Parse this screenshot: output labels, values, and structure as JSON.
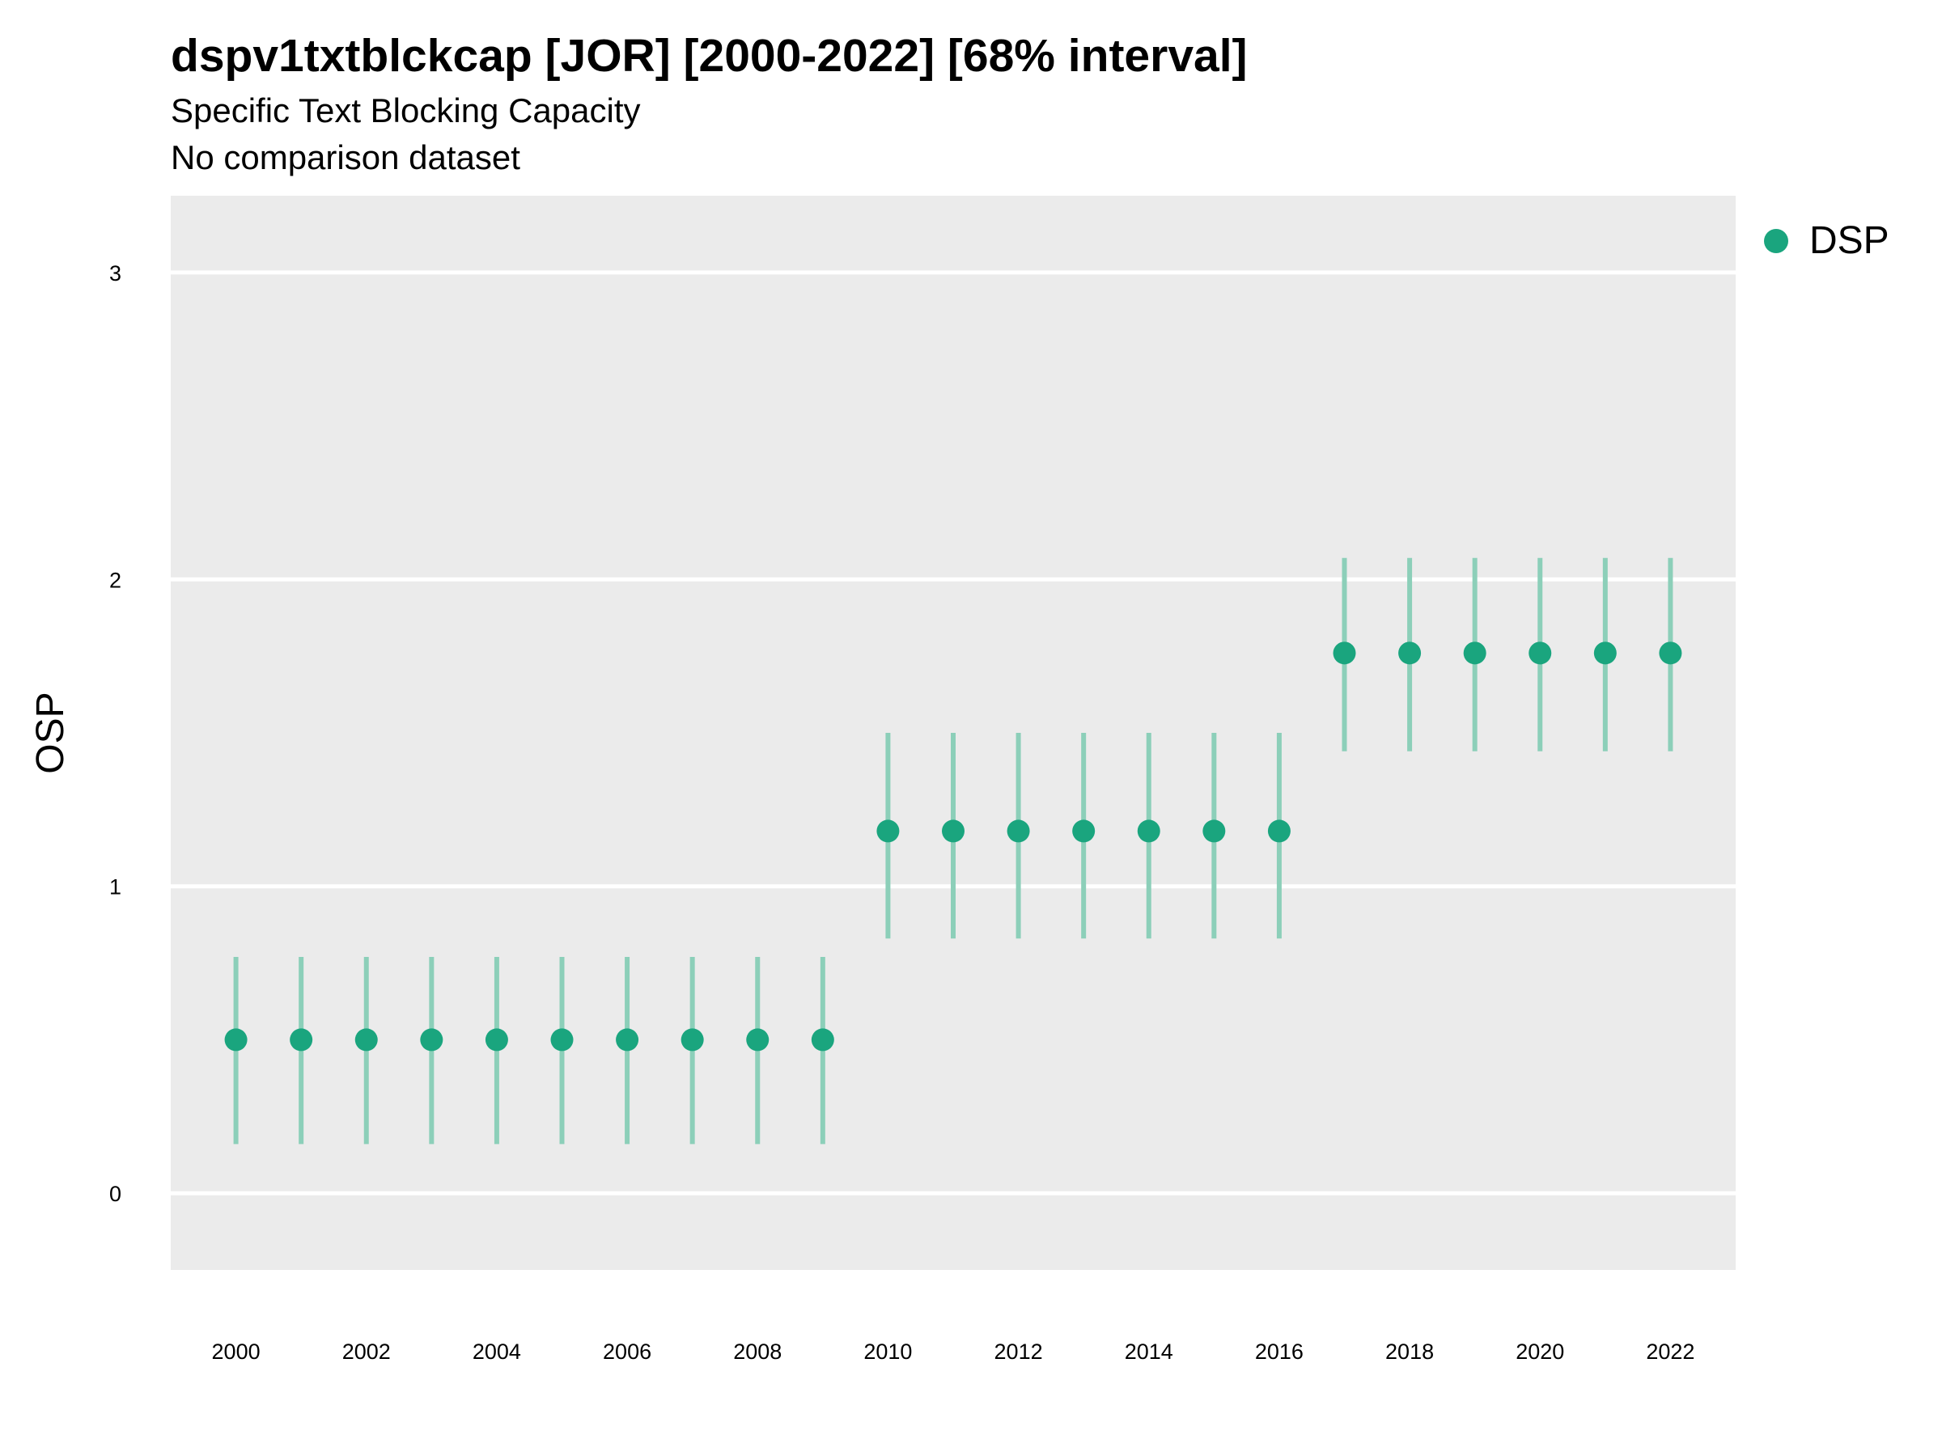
{
  "title": "dspv1txtblckcap [JOR] [2000-2022] [68% interval]",
  "subtitle": "Specific Text Blocking Capacity",
  "caption": "No comparison dataset",
  "colors": {
    "panel_bg": "#EBEBEB",
    "grid": "#FFFFFF",
    "point": "#1AA57E",
    "interval": "#8CCFB9"
  },
  "chart_data": {
    "type": "scatter",
    "title": "dspv1txtblckcap [JOR] [2000-2022] [68% interval]",
    "subtitle": "Specific Text Blocking Capacity",
    "xlabel": "",
    "ylabel": "OSP",
    "ylim": [
      -0.25,
      3.25
    ],
    "xlim": [
      1999,
      2023
    ],
    "yticks": [
      0,
      1,
      2,
      3
    ],
    "xticks": [
      2000,
      2002,
      2004,
      2006,
      2008,
      2010,
      2012,
      2014,
      2016,
      2018,
      2020,
      2022
    ],
    "grid": "horizontal major only",
    "legend_position": "right",
    "series": [
      {
        "name": "DSP",
        "x": [
          2000,
          2001,
          2002,
          2003,
          2004,
          2005,
          2006,
          2007,
          2008,
          2009,
          2010,
          2011,
          2012,
          2013,
          2014,
          2015,
          2016,
          2017,
          2018,
          2019,
          2020,
          2021,
          2022
        ],
        "y": [
          0.5,
          0.5,
          0.5,
          0.5,
          0.5,
          0.5,
          0.5,
          0.5,
          0.5,
          0.5,
          1.18,
          1.18,
          1.18,
          1.18,
          1.18,
          1.18,
          1.18,
          1.76,
          1.76,
          1.76,
          1.76,
          1.76,
          1.76
        ],
        "lower": [
          0.16,
          0.16,
          0.16,
          0.16,
          0.16,
          0.16,
          0.16,
          0.16,
          0.16,
          0.16,
          0.83,
          0.83,
          0.83,
          0.83,
          0.83,
          0.83,
          0.83,
          1.44,
          1.44,
          1.44,
          1.44,
          1.44,
          1.44
        ],
        "upper": [
          0.77,
          0.77,
          0.77,
          0.77,
          0.77,
          0.77,
          0.77,
          0.77,
          0.77,
          0.77,
          1.5,
          1.5,
          1.5,
          1.5,
          1.5,
          1.5,
          1.5,
          2.07,
          2.07,
          2.07,
          2.07,
          2.07,
          2.07
        ]
      }
    ]
  }
}
